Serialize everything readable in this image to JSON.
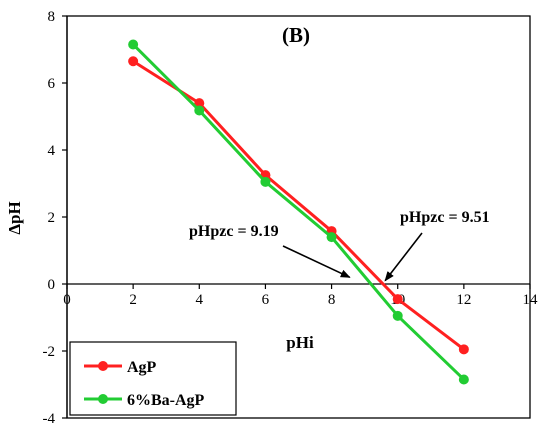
{
  "chart_data": {
    "type": "line",
    "panel_label": "(B)",
    "xlabel": "pHi",
    "ylabel": "ΔpH",
    "xlim": [
      0,
      14
    ],
    "ylim": [
      -4,
      8
    ],
    "xticks": [
      "0",
      "2",
      "4",
      "6",
      "8",
      "10",
      "12",
      "14"
    ],
    "yticks": [
      "-4",
      "-2",
      "0",
      "2",
      "4",
      "6",
      "8"
    ],
    "grid": false,
    "legend": "bottom-left",
    "series": [
      {
        "name": "AgP",
        "color": "#ff2020",
        "x": [
          2,
          4,
          6,
          8,
          10,
          12
        ],
        "y": [
          6.65,
          5.4,
          3.25,
          1.58,
          -0.45,
          -1.95
        ]
      },
      {
        "name": "6%Ba-AgP",
        "color": "#22cc33",
        "x": [
          2,
          4,
          6,
          8,
          10,
          12
        ],
        "y": [
          7.15,
          5.18,
          3.05,
          1.4,
          -0.95,
          -2.85
        ]
      }
    ],
    "annotations": [
      {
        "text": "pHpzc = 9.19",
        "x": 9.19,
        "y": 0
      },
      {
        "text": "pHpzc = 9.51",
        "x": 9.51,
        "y": 0
      }
    ]
  }
}
